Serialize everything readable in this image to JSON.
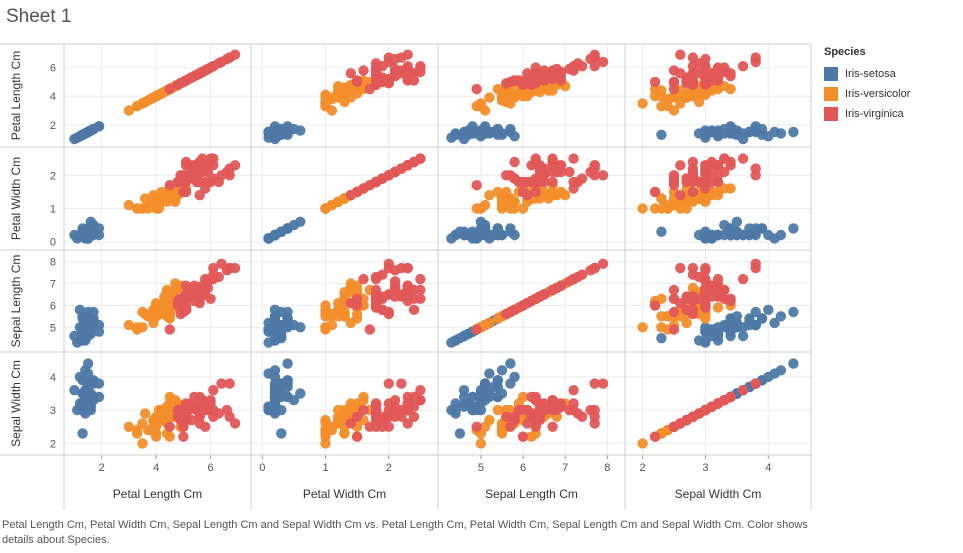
{
  "sheet_title": "Sheet 1",
  "caption": "Petal Length Cm, Petal Width Cm, Sepal Length Cm and Sepal Width Cm vs. Petal Length Cm, Petal Width Cm, Sepal Length Cm and Sepal Width Cm.  Color shows details about Species.",
  "legend": {
    "title": "Species",
    "items": [
      {
        "label": "Iris-setosa",
        "color": "#4e79a7"
      },
      {
        "label": "Iris-versicolor",
        "color": "#f28e2b"
      },
      {
        "label": "Iris-virginica",
        "color": "#e15759"
      }
    ]
  },
  "chart_data": {
    "type": "scatter",
    "variables": [
      {
        "name": "Petal Length Cm",
        "range": [
          0.8,
          7.3
        ],
        "ticks": [
          2,
          4,
          6
        ]
      },
      {
        "name": "Petal Width Cm",
        "range": [
          -0.1,
          2.7
        ],
        "ticks": [
          0,
          1,
          2
        ]
      },
      {
        "name": "Sepal Length Cm",
        "range": [
          4.1,
          8.3
        ],
        "ticks": [
          5,
          6,
          7,
          8
        ]
      },
      {
        "name": "Sepal Width Cm",
        "range": [
          1.8,
          4.6
        ],
        "ticks": [
          2,
          3,
          4
        ]
      }
    ],
    "series": [
      {
        "name": "Iris-setosa",
        "points": [
          [
            1.4,
            0.2,
            5.1,
            3.5
          ],
          [
            1.4,
            0.2,
            4.9,
            3.0
          ],
          [
            1.3,
            0.2,
            4.7,
            3.2
          ],
          [
            1.5,
            0.2,
            4.6,
            3.1
          ],
          [
            1.4,
            0.2,
            5.0,
            3.6
          ],
          [
            1.7,
            0.4,
            5.4,
            3.9
          ],
          [
            1.4,
            0.3,
            4.6,
            3.4
          ],
          [
            1.5,
            0.2,
            5.0,
            3.4
          ],
          [
            1.4,
            0.2,
            4.4,
            2.9
          ],
          [
            1.5,
            0.1,
            4.9,
            3.1
          ],
          [
            1.5,
            0.2,
            5.4,
            3.7
          ],
          [
            1.6,
            0.2,
            4.8,
            3.4
          ],
          [
            1.4,
            0.1,
            4.8,
            3.0
          ],
          [
            1.1,
            0.1,
            4.3,
            3.0
          ],
          [
            1.2,
            0.2,
            5.8,
            4.0
          ],
          [
            1.5,
            0.4,
            5.7,
            4.4
          ],
          [
            1.3,
            0.4,
            5.4,
            3.9
          ],
          [
            1.4,
            0.3,
            5.1,
            3.5
          ],
          [
            1.7,
            0.3,
            5.7,
            3.8
          ],
          [
            1.5,
            0.3,
            5.1,
            3.8
          ],
          [
            1.7,
            0.2,
            5.4,
            3.4
          ],
          [
            1.5,
            0.4,
            5.1,
            3.7
          ],
          [
            1.0,
            0.2,
            4.6,
            3.6
          ],
          [
            1.7,
            0.5,
            5.1,
            3.3
          ],
          [
            1.9,
            0.2,
            4.8,
            3.4
          ],
          [
            1.6,
            0.2,
            5.0,
            3.0
          ],
          [
            1.6,
            0.4,
            5.0,
            3.4
          ],
          [
            1.5,
            0.2,
            5.2,
            3.5
          ],
          [
            1.4,
            0.2,
            5.2,
            3.4
          ],
          [
            1.6,
            0.2,
            4.7,
            3.2
          ],
          [
            1.6,
            0.2,
            4.8,
            3.1
          ],
          [
            1.5,
            0.4,
            5.4,
            3.4
          ],
          [
            1.5,
            0.1,
            5.2,
            4.1
          ],
          [
            1.4,
            0.2,
            5.5,
            4.2
          ],
          [
            1.5,
            0.1,
            4.9,
            3.1
          ],
          [
            1.2,
            0.2,
            5.0,
            3.2
          ],
          [
            1.3,
            0.2,
            5.5,
            3.5
          ],
          [
            1.5,
            0.1,
            4.9,
            3.1
          ],
          [
            1.3,
            0.2,
            4.4,
            3.0
          ],
          [
            1.5,
            0.2,
            5.1,
            3.4
          ],
          [
            1.3,
            0.3,
            5.0,
            3.5
          ],
          [
            1.3,
            0.3,
            4.5,
            2.3
          ],
          [
            1.3,
            0.2,
            4.4,
            3.2
          ],
          [
            1.6,
            0.6,
            5.0,
            3.5
          ],
          [
            1.9,
            0.4,
            5.1,
            3.8
          ],
          [
            1.4,
            0.3,
            4.8,
            3.0
          ],
          [
            1.6,
            0.2,
            5.1,
            3.8
          ],
          [
            1.4,
            0.2,
            4.6,
            3.2
          ],
          [
            1.5,
            0.2,
            5.3,
            3.7
          ],
          [
            1.4,
            0.2,
            5.0,
            3.3
          ]
        ]
      },
      {
        "name": "Iris-versicolor",
        "points": [
          [
            4.7,
            1.4,
            7.0,
            3.2
          ],
          [
            4.5,
            1.5,
            6.4,
            3.2
          ],
          [
            4.9,
            1.5,
            6.9,
            3.1
          ],
          [
            4.0,
            1.3,
            5.5,
            2.3
          ],
          [
            4.6,
            1.5,
            6.5,
            2.8
          ],
          [
            4.5,
            1.3,
            5.7,
            2.8
          ],
          [
            4.7,
            1.6,
            6.3,
            3.3
          ],
          [
            3.3,
            1.0,
            4.9,
            2.4
          ],
          [
            4.6,
            1.3,
            6.6,
            2.9
          ],
          [
            3.9,
            1.4,
            5.2,
            2.7
          ],
          [
            3.5,
            1.0,
            5.0,
            2.0
          ],
          [
            4.2,
            1.5,
            5.9,
            3.0
          ],
          [
            4.0,
            1.0,
            6.0,
            2.2
          ],
          [
            4.7,
            1.4,
            6.1,
            2.9
          ],
          [
            3.6,
            1.3,
            5.6,
            2.9
          ],
          [
            4.4,
            1.4,
            6.7,
            3.1
          ],
          [
            4.5,
            1.5,
            5.6,
            3.0
          ],
          [
            4.1,
            1.0,
            5.8,
            2.7
          ],
          [
            4.5,
            1.5,
            6.2,
            2.2
          ],
          [
            3.9,
            1.1,
            5.6,
            2.5
          ],
          [
            4.8,
            1.8,
            5.9,
            3.2
          ],
          [
            4.0,
            1.3,
            6.1,
            2.8
          ],
          [
            4.9,
            1.5,
            6.3,
            2.5
          ],
          [
            4.7,
            1.2,
            6.1,
            2.8
          ],
          [
            4.3,
            1.3,
            6.4,
            2.9
          ],
          [
            4.4,
            1.4,
            6.6,
            3.0
          ],
          [
            4.8,
            1.4,
            6.8,
            2.8
          ],
          [
            5.0,
            1.7,
            6.7,
            3.0
          ],
          [
            4.5,
            1.5,
            6.0,
            2.9
          ],
          [
            3.5,
            1.0,
            5.7,
            2.6
          ],
          [
            3.8,
            1.1,
            5.5,
            2.4
          ],
          [
            3.7,
            1.0,
            5.5,
            2.4
          ],
          [
            3.9,
            1.2,
            5.8,
            2.7
          ],
          [
            5.1,
            1.6,
            6.0,
            2.7
          ],
          [
            4.5,
            1.5,
            5.4,
            3.0
          ],
          [
            4.5,
            1.6,
            6.0,
            3.4
          ],
          [
            4.7,
            1.5,
            6.7,
            3.1
          ],
          [
            4.4,
            1.3,
            6.3,
            2.3
          ],
          [
            4.1,
            1.3,
            5.6,
            3.0
          ],
          [
            4.0,
            1.3,
            5.5,
            2.5
          ],
          [
            4.4,
            1.2,
            5.5,
            2.6
          ],
          [
            4.6,
            1.4,
            6.1,
            3.0
          ],
          [
            4.0,
            1.2,
            5.8,
            2.6
          ],
          [
            3.3,
            1.0,
            5.0,
            2.3
          ],
          [
            4.2,
            1.3,
            5.6,
            2.7
          ],
          [
            4.2,
            1.2,
            5.7,
            3.0
          ],
          [
            4.2,
            1.3,
            5.7,
            2.9
          ],
          [
            4.3,
            1.3,
            6.2,
            2.9
          ],
          [
            3.0,
            1.1,
            5.1,
            2.5
          ],
          [
            4.1,
            1.3,
            5.7,
            2.8
          ]
        ]
      },
      {
        "name": "Iris-virginica",
        "points": [
          [
            6.0,
            2.5,
            6.3,
            3.3
          ],
          [
            5.1,
            1.9,
            5.8,
            2.7
          ],
          [
            5.9,
            2.1,
            7.1,
            3.0
          ],
          [
            5.6,
            1.8,
            6.3,
            2.9
          ],
          [
            5.8,
            2.2,
            6.5,
            3.0
          ],
          [
            6.6,
            2.1,
            7.6,
            3.0
          ],
          [
            4.5,
            1.7,
            4.9,
            2.5
          ],
          [
            6.3,
            1.8,
            7.3,
            2.9
          ],
          [
            5.8,
            1.8,
            6.7,
            2.5
          ],
          [
            6.1,
            2.5,
            7.2,
            3.6
          ],
          [
            5.1,
            2.0,
            6.5,
            3.2
          ],
          [
            5.3,
            1.9,
            6.4,
            2.7
          ],
          [
            5.5,
            2.1,
            6.8,
            3.0
          ],
          [
            5.0,
            2.0,
            5.7,
            2.5
          ],
          [
            5.1,
            2.4,
            5.8,
            2.8
          ],
          [
            5.3,
            2.3,
            6.4,
            3.2
          ],
          [
            5.5,
            1.8,
            6.5,
            3.0
          ],
          [
            6.7,
            2.2,
            7.7,
            3.8
          ],
          [
            6.9,
            2.3,
            7.7,
            2.6
          ],
          [
            5.0,
            1.5,
            6.0,
            2.2
          ],
          [
            5.7,
            2.3,
            6.9,
            3.2
          ],
          [
            4.9,
            2.0,
            5.6,
            2.8
          ],
          [
            6.7,
            2.0,
            7.7,
            2.8
          ],
          [
            4.9,
            1.8,
            6.3,
            2.7
          ],
          [
            5.7,
            2.1,
            6.7,
            3.3
          ],
          [
            6.0,
            1.8,
            7.2,
            3.2
          ],
          [
            4.8,
            1.8,
            6.2,
            2.8
          ],
          [
            4.9,
            1.8,
            6.1,
            3.0
          ],
          [
            5.6,
            2.1,
            6.4,
            2.8
          ],
          [
            5.8,
            1.6,
            7.2,
            3.0
          ],
          [
            6.1,
            1.9,
            7.4,
            2.8
          ],
          [
            6.4,
            2.0,
            7.9,
            3.8
          ],
          [
            5.6,
            2.2,
            6.4,
            2.8
          ],
          [
            5.1,
            1.5,
            6.3,
            2.8
          ],
          [
            5.6,
            1.4,
            6.1,
            2.6
          ],
          [
            6.1,
            2.3,
            7.7,
            3.0
          ],
          [
            5.6,
            2.4,
            6.3,
            3.4
          ],
          [
            5.5,
            1.8,
            6.4,
            3.1
          ],
          [
            4.8,
            1.8,
            6.0,
            3.0
          ],
          [
            5.4,
            2.1,
            6.9,
            3.1
          ],
          [
            5.6,
            2.4,
            6.7,
            3.1
          ],
          [
            5.1,
            2.3,
            6.9,
            3.1
          ],
          [
            5.1,
            1.9,
            5.8,
            2.7
          ],
          [
            5.9,
            2.3,
            6.8,
            3.2
          ],
          [
            5.7,
            2.5,
            6.7,
            3.3
          ],
          [
            5.2,
            2.3,
            6.7,
            3.0
          ],
          [
            5.0,
            1.9,
            6.3,
            2.5
          ],
          [
            5.2,
            2.0,
            6.5,
            3.0
          ],
          [
            5.4,
            2.3,
            6.2,
            3.4
          ],
          [
            5.1,
            1.8,
            5.9,
            3.0
          ]
        ]
      }
    ]
  }
}
